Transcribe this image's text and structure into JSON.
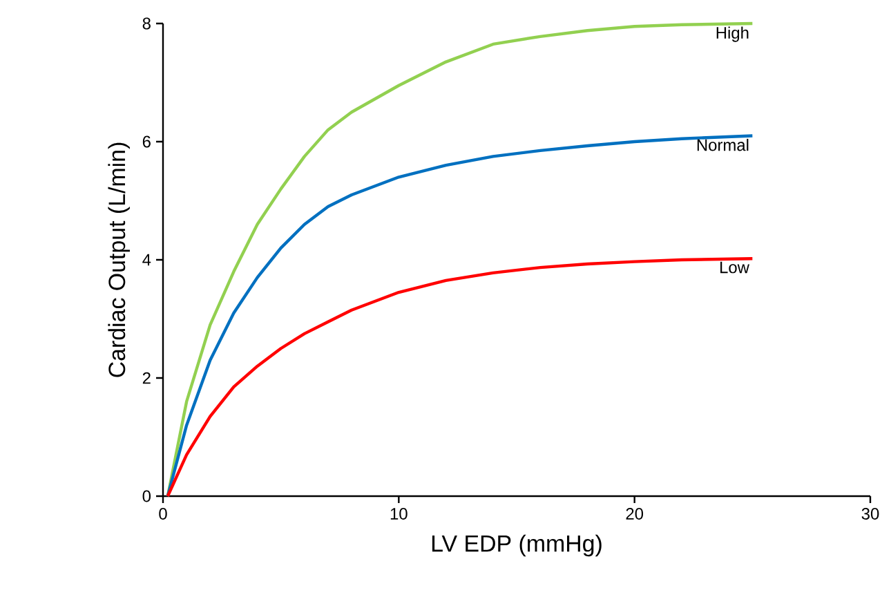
{
  "chart_data": {
    "type": "line",
    "xlabel": "LV EDP (mmHg)",
    "ylabel": "Cardiac Output (L/min)",
    "xlim": [
      0,
      30
    ],
    "ylim": [
      0,
      8
    ],
    "xticks": [
      0,
      10,
      20,
      30
    ],
    "yticks": [
      0,
      2,
      4,
      6,
      8
    ],
    "grid": false,
    "legend": false,
    "marker": "none",
    "line_style": "solid",
    "series": [
      {
        "name": "High",
        "color": "#92d050",
        "x": [
          0.2,
          1,
          2,
          3,
          4,
          5,
          6,
          7,
          8,
          10,
          12,
          14,
          16,
          18,
          20,
          22,
          25
        ],
        "values": [
          0,
          1.6,
          2.9,
          3.8,
          4.6,
          5.2,
          5.75,
          6.2,
          6.5,
          6.95,
          7.35,
          7.65,
          7.78,
          7.88,
          7.95,
          7.98,
          8.0
        ]
      },
      {
        "name": "Normal",
        "color": "#0070c0",
        "x": [
          0.2,
          1,
          2,
          3,
          4,
          5,
          6,
          7,
          8,
          10,
          12,
          14,
          16,
          18,
          20,
          22,
          25
        ],
        "values": [
          0,
          1.2,
          2.3,
          3.1,
          3.7,
          4.2,
          4.6,
          4.9,
          5.1,
          5.4,
          5.6,
          5.75,
          5.85,
          5.93,
          6.0,
          6.05,
          6.1
        ]
      },
      {
        "name": "Low",
        "color": "#ff0000",
        "x": [
          0.2,
          1,
          2,
          3,
          4,
          5,
          6,
          7,
          8,
          10,
          12,
          14,
          16,
          18,
          20,
          22,
          25
        ],
        "values": [
          0,
          0.7,
          1.35,
          1.85,
          2.2,
          2.5,
          2.75,
          2.95,
          3.15,
          3.45,
          3.65,
          3.78,
          3.87,
          3.93,
          3.97,
          4.0,
          4.02
        ]
      }
    ]
  }
}
